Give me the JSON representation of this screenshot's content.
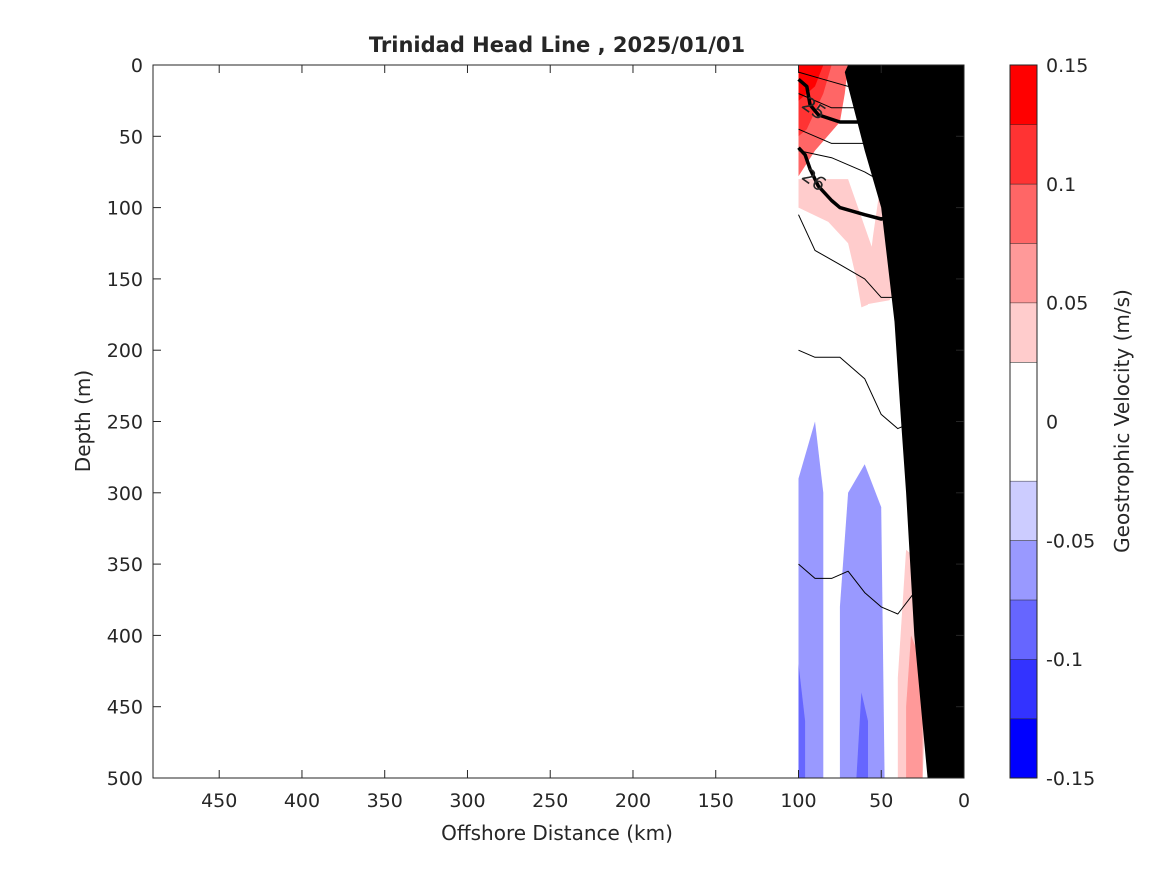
{
  "chart_data": {
    "type": "contour",
    "title": "Trinidad Head Line , 2025/01/01",
    "xlabel": "Offshore Distance (km)",
    "ylabel": "Depth (m)",
    "xlim": [
      490,
      0
    ],
    "ylim": [
      0,
      500
    ],
    "x_reversed": true,
    "y_reversed": true,
    "xticks": [
      450,
      400,
      350,
      300,
      250,
      200,
      150,
      100,
      50,
      0
    ],
    "yticks": [
      0,
      50,
      100,
      150,
      200,
      250,
      300,
      350,
      400,
      450,
      500
    ],
    "colorbar": {
      "label": "Geostrophic Velocity (m/s)",
      "range": [
        -0.15,
        0.15
      ],
      "ticks": [
        0.15,
        0.1,
        0.05,
        0,
        -0.05,
        -0.1,
        -0.15
      ],
      "tick_labels": [
        "0.15",
        "0.1",
        "0.05",
        "0",
        "-0.05",
        "-0.1",
        "-0.15"
      ],
      "levels": [
        -0.15,
        -0.125,
        -0.1,
        -0.075,
        -0.05,
        -0.025,
        0.025,
        0.05,
        0.075,
        0.1,
        0.125,
        0.15
      ],
      "colors": [
        "#0000ff",
        "#3333ff",
        "#6666ff",
        "#9999ff",
        "#ccccff",
        "#ffffff",
        "#ffcccc",
        "#ff9999",
        "#ff6666",
        "#ff3333",
        "#ff0000"
      ]
    },
    "velocity_patches": [
      {
        "v": 0.05,
        "points": [
          [
            100,
            0
          ],
          [
            52,
            0
          ],
          [
            50,
            80
          ],
          [
            55,
            120
          ],
          [
            60,
            168
          ],
          [
            45,
            165
          ],
          [
            38,
            150
          ],
          [
            30,
            120
          ],
          [
            30,
            60
          ],
          [
            40,
            35
          ],
          [
            35,
            0
          ],
          [
            100,
            0
          ],
          [
            100,
            100
          ],
          [
            82,
            110
          ],
          [
            70,
            125
          ],
          [
            65,
            150
          ],
          [
            62,
            170
          ],
          [
            58,
            168
          ],
          [
            55,
            130
          ],
          [
            70,
            80
          ],
          [
            100,
            80
          ]
        ]
      },
      {
        "v": 0.1,
        "points": [
          [
            100,
            0
          ],
          [
            70,
            0
          ],
          [
            72,
            20
          ],
          [
            75,
            40
          ],
          [
            90,
            60
          ],
          [
            100,
            78
          ]
        ]
      },
      {
        "v": 0.125,
        "points": [
          [
            100,
            0
          ],
          [
            80,
            0
          ],
          [
            85,
            20
          ],
          [
            95,
            45
          ],
          [
            100,
            50
          ]
        ]
      },
      {
        "v": 0.15,
        "points": [
          [
            100,
            0
          ],
          [
            85,
            0
          ],
          [
            90,
            15
          ],
          [
            100,
            25
          ]
        ]
      },
      {
        "v": -0.05,
        "points": [
          [
            38,
            0
          ],
          [
            35,
            10
          ],
          [
            38,
            40
          ],
          [
            38,
            140
          ],
          [
            30,
            180
          ],
          [
            22,
            175
          ],
          [
            18,
            120
          ],
          [
            20,
            20
          ],
          [
            30,
            0
          ]
        ]
      },
      {
        "v": -0.075,
        "points": [
          [
            32,
            0
          ],
          [
            30,
            20
          ],
          [
            32,
            70
          ],
          [
            30,
            120
          ],
          [
            25,
            118
          ],
          [
            22,
            60
          ],
          [
            25,
            20
          ],
          [
            28,
            0
          ]
        ]
      },
      {
        "v": 0.05,
        "points": [
          [
            22,
            0
          ],
          [
            25,
            5
          ],
          [
            20,
            10
          ],
          [
            19,
            5
          ]
        ]
      },
      {
        "v": -0.05,
        "points": [
          [
            100,
            290
          ],
          [
            90,
            250
          ],
          [
            85,
            300
          ],
          [
            85,
            500
          ],
          [
            100,
            500
          ]
        ]
      },
      {
        "v": -0.05,
        "points": [
          [
            75,
            500
          ],
          [
            75,
            380
          ],
          [
            70,
            300
          ],
          [
            60,
            280
          ],
          [
            50,
            310
          ],
          [
            48,
            500
          ]
        ]
      },
      {
        "v": -0.075,
        "points": [
          [
            100,
            420
          ],
          [
            96,
            460
          ],
          [
            96,
            500
          ],
          [
            100,
            500
          ]
        ]
      },
      {
        "v": -0.075,
        "points": [
          [
            65,
            500
          ],
          [
            62,
            440
          ],
          [
            58,
            460
          ],
          [
            58,
            500
          ]
        ]
      },
      {
        "v": 0.05,
        "points": [
          [
            40,
            500
          ],
          [
            40,
            430
          ],
          [
            35,
            340
          ],
          [
            25,
            350
          ],
          [
            22,
            420
          ],
          [
            25,
            500
          ]
        ]
      },
      {
        "v": 0.075,
        "points": [
          [
            35,
            500
          ],
          [
            35,
            450
          ],
          [
            32,
            400
          ],
          [
            25,
            420
          ],
          [
            25,
            500
          ]
        ]
      }
    ],
    "contour_lines": [
      {
        "label": "",
        "bold": false,
        "points": [
          [
            100,
            5
          ],
          [
            85,
            10
          ],
          [
            70,
            15
          ],
          [
            60,
            10
          ],
          [
            48,
            0
          ]
        ]
      },
      {
        "label": "",
        "bold": false,
        "points": [
          [
            100,
            20
          ],
          [
            80,
            30
          ],
          [
            60,
            30
          ],
          [
            40,
            40
          ],
          [
            20,
            45
          ]
        ]
      },
      {
        "label": "",
        "bold": false,
        "points": [
          [
            100,
            45
          ],
          [
            80,
            55
          ],
          [
            60,
            55
          ],
          [
            40,
            60
          ],
          [
            20,
            63
          ]
        ]
      },
      {
        "label": "",
        "bold": false,
        "points": [
          [
            100,
            60
          ],
          [
            80,
            65
          ],
          [
            60,
            75
          ],
          [
            45,
            85
          ],
          [
            20,
            90
          ]
        ]
      },
      {
        "label": "",
        "bold": false,
        "points": [
          [
            100,
            105
          ],
          [
            90,
            130
          ],
          [
            75,
            140
          ],
          [
            60,
            150
          ],
          [
            50,
            163
          ],
          [
            40,
            163
          ],
          [
            25,
            140
          ]
        ]
      },
      {
        "label": "",
        "bold": false,
        "points": [
          [
            100,
            200
          ],
          [
            90,
            205
          ],
          [
            75,
            205
          ],
          [
            60,
            220
          ],
          [
            50,
            245
          ],
          [
            40,
            255
          ],
          [
            30,
            250
          ],
          [
            20,
            230
          ]
        ]
      },
      {
        "label": "",
        "bold": false,
        "points": [
          [
            100,
            350
          ],
          [
            90,
            360
          ],
          [
            80,
            360
          ],
          [
            70,
            355
          ],
          [
            60,
            370
          ],
          [
            50,
            380
          ],
          [
            40,
            385
          ],
          [
            30,
            370
          ],
          [
            20,
            340
          ]
        ]
      },
      {
        "label": "",
        "bold": false,
        "points": [
          [
            30,
            0
          ],
          [
            20,
            15
          ],
          [
            15,
            20
          ]
        ]
      },
      {
        "label": "25",
        "bold": true,
        "points": [
          [
            100,
            10
          ],
          [
            95,
            15
          ],
          [
            93,
            28
          ],
          [
            88,
            35
          ],
          [
            75,
            40
          ],
          [
            50,
            40
          ],
          [
            20,
            43
          ]
        ]
      },
      {
        "label": "26",
        "bold": true,
        "points": [
          [
            100,
            58
          ],
          [
            96,
            63
          ],
          [
            93,
            73
          ],
          [
            88,
            85
          ],
          [
            80,
            95
          ],
          [
            75,
            100
          ],
          [
            60,
            105
          ],
          [
            50,
            108
          ],
          [
            40,
            105
          ],
          [
            20,
            103
          ]
        ]
      }
    ],
    "bathymetry": [
      [
        22,
        500
      ],
      [
        30,
        400
      ],
      [
        35,
        300
      ],
      [
        38,
        250
      ],
      [
        42,
        180
      ],
      [
        50,
        100
      ],
      [
        60,
        60
      ],
      [
        70,
        15
      ],
      [
        72,
        5
      ],
      [
        70,
        0
      ],
      [
        0,
        0
      ],
      [
        0,
        500
      ]
    ]
  }
}
